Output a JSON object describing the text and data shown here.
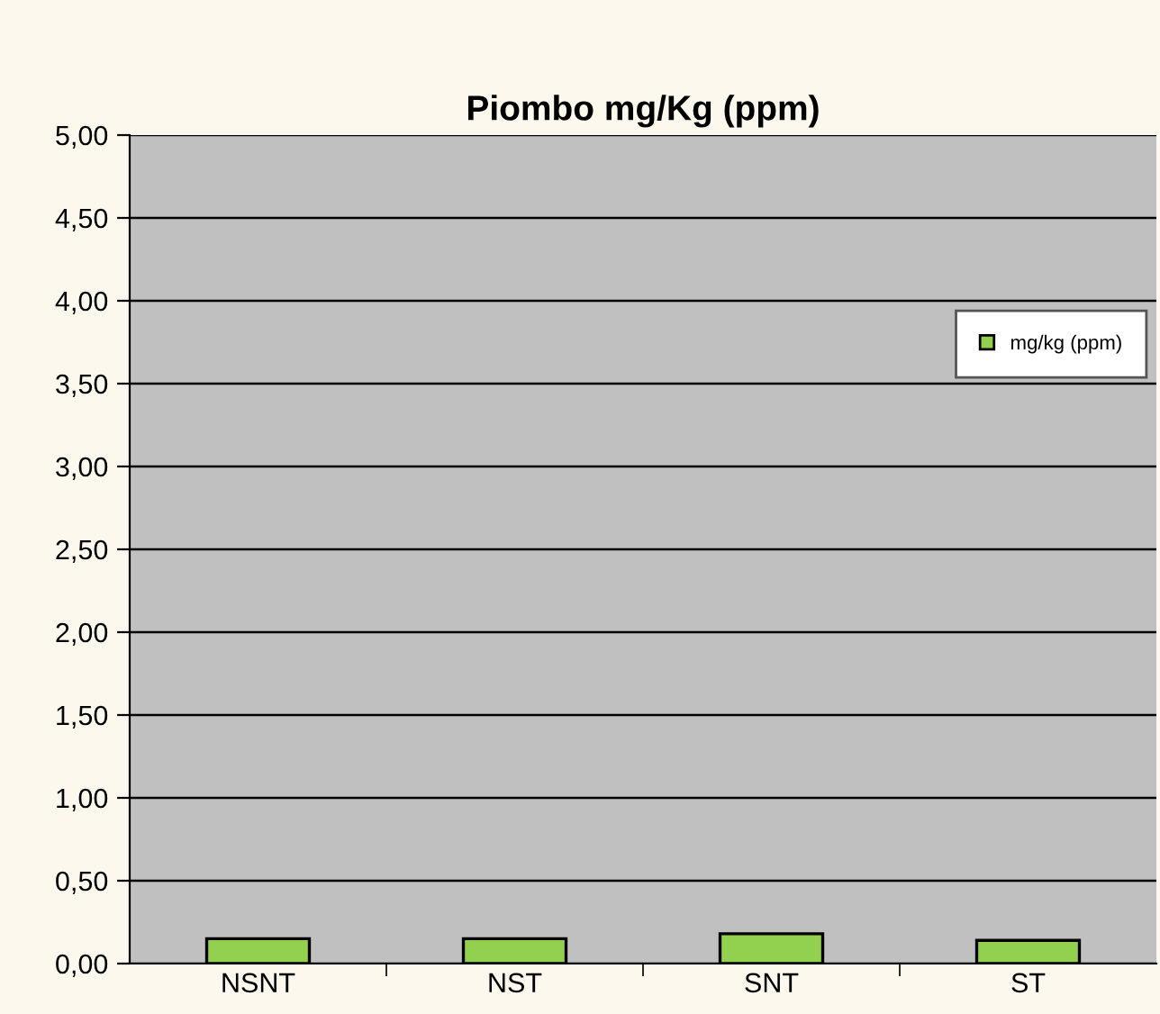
{
  "chart_data": {
    "type": "bar",
    "title": "Piombo mg/Kg (ppm)",
    "categories": [
      "NSNT",
      "NST",
      "SNT",
      "ST"
    ],
    "series": [
      {
        "name": "mg/kg (ppm)",
        "color": "#92d050",
        "values": [
          0.15,
          0.15,
          0.18,
          0.14
        ]
      }
    ],
    "ylim": [
      0,
      5
    ],
    "yticks": [
      {
        "value": 0,
        "label": "0,00"
      },
      {
        "value": 0.5,
        "label": "0,50"
      },
      {
        "value": 1,
        "label": "1,00"
      },
      {
        "value": 1.5,
        "label": "1,50"
      },
      {
        "value": 2,
        "label": "2,00"
      },
      {
        "value": 2.5,
        "label": "2,50"
      },
      {
        "value": 3,
        "label": "3,00"
      },
      {
        "value": 3.5,
        "label": "3,50"
      },
      {
        "value": 4,
        "label": "4,00"
      },
      {
        "value": 4.5,
        "label": "4,50"
      },
      {
        "value": 5,
        "label": "5,00"
      }
    ],
    "grid": "y",
    "legend": "top right"
  }
}
